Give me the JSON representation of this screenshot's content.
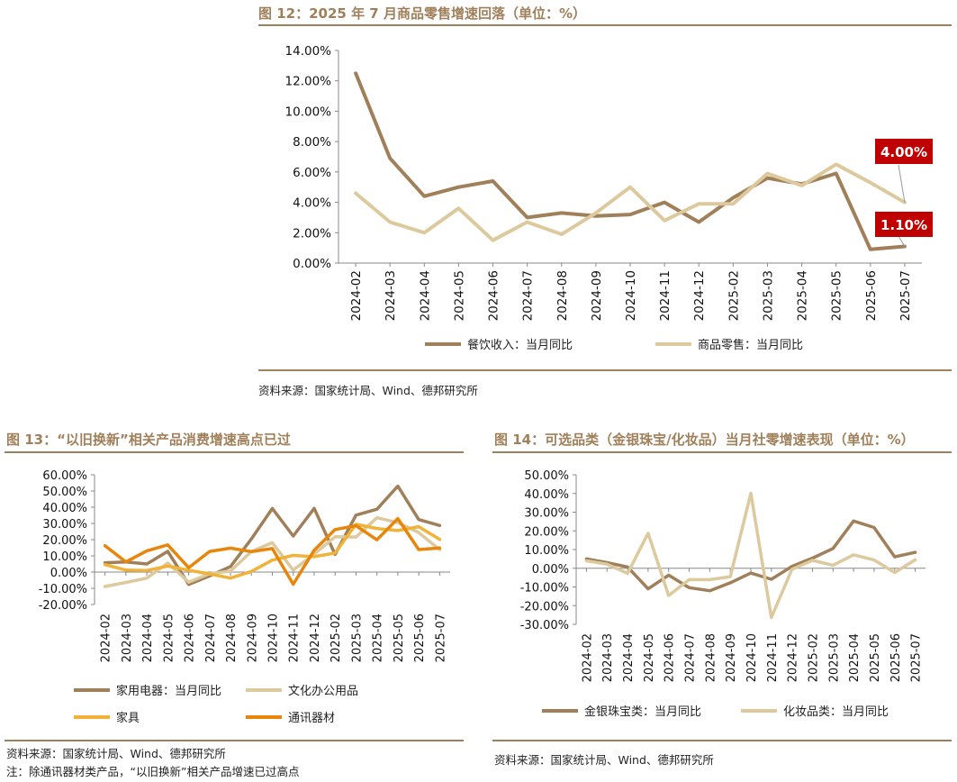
{
  "fig12": {
    "title": "图 12：2025 年 7 月商品零售增速回落（单位：%）",
    "source": "资料来源：国家统计局、Wind、德邦研究所",
    "callout_high": "4.00%",
    "callout_low": "1.10%"
  },
  "fig13": {
    "title": "图 13：“以旧换新”相关产品消费增速高点已过",
    "source": "资料来源：国家统计局、Wind、德邦研究所",
    "note": "注：除通讯器材类产品，“以旧换新”相关产品增速已过高点"
  },
  "fig14": {
    "title": "图 14：可选品类（金银珠宝/化妆品）当月社零增速表现（单位：%）",
    "source": "资料来源：国家统计局、Wind、德邦研究所"
  },
  "chart_data": [
    {
      "id": "fig12",
      "type": "line",
      "title": "图 12：2025 年 7 月商品零售增速回落（单位：%）",
      "categories": [
        "2024-02",
        "2024-03",
        "2024-04",
        "2024-05",
        "2024-06",
        "2024-07",
        "2024-08",
        "2024-09",
        "2024-10",
        "2024-11",
        "2024-12",
        "2025-02",
        "2025-03",
        "2025-04",
        "2025-05",
        "2025-06",
        "2025-07"
      ],
      "ylim": [
        0,
        14
      ],
      "yticks": [
        0,
        2,
        4,
        6,
        8,
        10,
        12,
        14
      ],
      "ytick_labels": [
        "0.00%",
        "2.00%",
        "4.00%",
        "6.00%",
        "8.00%",
        "10.00%",
        "12.00%",
        "14.00%"
      ],
      "series": [
        {
          "name": "餐饮收入：当月同比",
          "color": "#a0805a",
          "values": [
            12.5,
            6.9,
            4.4,
            5.0,
            5.4,
            3.0,
            3.3,
            3.1,
            3.2,
            4.0,
            2.7,
            4.3,
            5.6,
            5.2,
            5.9,
            0.9,
            1.1
          ]
        },
        {
          "name": "商品零售：当月同比",
          "color": "#ddc99e",
          "values": [
            4.6,
            2.7,
            2.0,
            3.6,
            1.5,
            2.7,
            1.9,
            3.3,
            5.0,
            2.8,
            3.9,
            3.9,
            5.9,
            5.1,
            6.5,
            5.3,
            4.0
          ]
        }
      ],
      "annotations": [
        "4.00%",
        "1.10%"
      ]
    },
    {
      "id": "fig13",
      "type": "line",
      "title": "图 13：“以旧换新”相关产品消费增速高点已过",
      "categories": [
        "2024-02",
        "2024-03",
        "2024-04",
        "2024-05",
        "2024-06",
        "2024-07",
        "2024-08",
        "2024-09",
        "2024-10",
        "2024-11",
        "2024-12",
        "2025-02",
        "2025-03",
        "2025-04",
        "2025-05",
        "2025-06",
        "2025-07"
      ],
      "ylim": [
        -20,
        60
      ],
      "yticks": [
        -20,
        -10,
        0,
        10,
        20,
        30,
        40,
        50,
        60
      ],
      "ytick_labels": [
        "-20.00%",
        "-10.00%",
        "0.00%",
        "10.00%",
        "20.00%",
        "30.00%",
        "40.00%",
        "50.00%",
        "60.00%"
      ],
      "series": [
        {
          "name": "家用电器：当月同比",
          "color": "#a0805a",
          "values": [
            5.8,
            6.2,
            5.0,
            12.8,
            -7.6,
            -2.4,
            3.4,
            20.5,
            39.2,
            22.2,
            39.3,
            10.9,
            35.1,
            38.8,
            53.0,
            32.4,
            28.7
          ]
        },
        {
          "name": "文化办公用品",
          "color": "#ddc99e",
          "values": [
            -8.9,
            -6.4,
            -3.7,
            5.6,
            -6.2,
            -1.0,
            0.6,
            12.7,
            18.1,
            1.2,
            11.1,
            21.8,
            21.6,
            33.5,
            30.5,
            24.4,
            13.8
          ]
        },
        {
          "name": "家具",
          "color": "#f0b33a",
          "values": [
            4.6,
            1.2,
            1.0,
            3.7,
            1.1,
            -1.1,
            -3.7,
            0.4,
            7.4,
            10.3,
            9.5,
            11.7,
            29.5,
            26.9,
            25.6,
            28.0,
            20.1
          ]
        },
        {
          "name": "通讯器材",
          "color": "#e8860c",
          "values": [
            16.3,
            6.3,
            13.1,
            16.8,
            2.7,
            12.7,
            14.8,
            12.6,
            14.5,
            -7.5,
            13.5,
            26.2,
            28.6,
            19.9,
            33.0,
            13.9,
            14.9
          ]
        }
      ]
    },
    {
      "id": "fig14",
      "type": "line",
      "title": "图 14：可选品类（金银珠宝/化妆品）当月社零增速表现（单位：%）",
      "categories": [
        "2024-02",
        "2024-03",
        "2024-04",
        "2024-05",
        "2024-06",
        "2024-07",
        "2024-08",
        "2024-09",
        "2024-10",
        "2024-11",
        "2024-12",
        "2025-02",
        "2025-03",
        "2025-04",
        "2025-05",
        "2025-06",
        "2025-07"
      ],
      "ylim": [
        -30,
        50
      ],
      "yticks": [
        -30,
        -20,
        -10,
        0,
        10,
        20,
        30,
        40,
        50
      ],
      "ytick_labels": [
        "-30.00%",
        "-20.00%",
        "-10.00%",
        "0.00%",
        "10.00%",
        "20.00%",
        "30.00%",
        "40.00%",
        "50.00%"
      ],
      "series": [
        {
          "name": "金银珠宝类：当月同比",
          "color": "#a0805a",
          "values": [
            5.0,
            3.0,
            0.7,
            -11.0,
            -3.7,
            -10.4,
            -12.0,
            -7.8,
            -2.6,
            -5.9,
            1.0,
            5.4,
            10.6,
            25.3,
            21.8,
            6.1,
            8.5
          ]
        },
        {
          "name": "化妆品类：当月同比",
          "color": "#ddc99e",
          "values": [
            4.0,
            2.2,
            -2.7,
            18.7,
            -14.6,
            -6.1,
            -6.1,
            -4.5,
            40.1,
            -26.4,
            -0.6,
            4.2,
            1.6,
            7.2,
            4.4,
            -2.3,
            4.5
          ]
        }
      ]
    }
  ],
  "legend12": [
    "餐饮收入：当月同比",
    "商品零售：当月同比"
  ],
  "legend13": [
    "家用电器：当月同比",
    "文化办公用品",
    "家具",
    "通讯器材"
  ],
  "legend14": [
    "金银珠宝类：当月同比",
    "化妆品类：当月同比"
  ]
}
